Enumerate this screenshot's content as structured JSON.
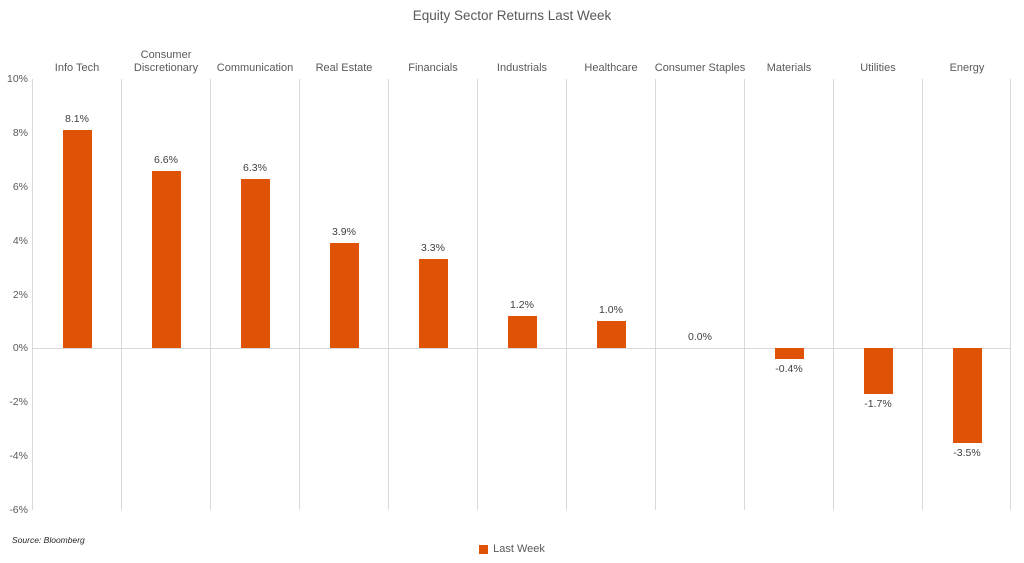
{
  "chart": {
    "title": "Equity Sector Returns Last Week",
    "source": "Source: Bloomberg",
    "legend_label": "Last Week"
  },
  "chart_data": {
    "type": "bar",
    "title": "Equity Sector Returns Last Week",
    "categories": [
      "Info Tech",
      "Consumer Discretionary",
      "Communication",
      "Real Estate",
      "Financials",
      "Industrials",
      "Healthcare",
      "Consumer Staples",
      "Materials",
      "Utilities",
      "Energy"
    ],
    "series": [
      {
        "name": "Last Week",
        "color": "#E05206",
        "values": [
          8.1,
          6.6,
          6.3,
          3.9,
          3.3,
          1.2,
          1.0,
          0.0,
          -0.4,
          -1.7,
          -3.5
        ],
        "value_labels": [
          "8.1%",
          "6.6%",
          "6.3%",
          "3.9%",
          "3.3%",
          "1.2%",
          "1.0%",
          "0.0%",
          "-0.4%",
          "-1.7%",
          "-3.5%"
        ]
      }
    ],
    "xlabel": "",
    "ylabel": "",
    "ylim": [
      -6,
      10
    ],
    "y_ticks": [
      "10%",
      "8%",
      "6%",
      "4%",
      "2%",
      "0%",
      "-2%",
      "-4%",
      "-6%"
    ],
    "y_tick_values": [
      10,
      8,
      6,
      4,
      2,
      0,
      -2,
      -4,
      -6
    ],
    "grid": "vertical-only",
    "gridline_color": "#D9D9D9",
    "text_color": "#595959",
    "legend_position": "bottom-center",
    "source": "Source: Bloomberg"
  }
}
